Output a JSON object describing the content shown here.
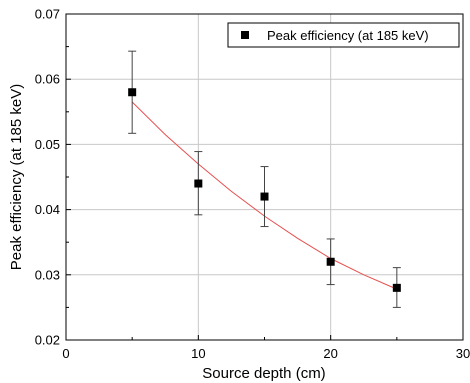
{
  "chart_data": {
    "type": "scatter",
    "xlabel": "Source depth (cm)",
    "ylabel": "Peak efficiency (at 185 keV)",
    "xlim": [
      0,
      30
    ],
    "ylim": [
      0.02,
      0.07
    ],
    "x_ticks": [
      0,
      10,
      20,
      30
    ],
    "y_ticks": [
      0.02,
      0.03,
      0.04,
      0.05,
      0.06,
      0.07
    ],
    "x_tick_labels": [
      "0",
      "10",
      "20",
      "30"
    ],
    "y_tick_labels": [
      "0.02",
      "0.03",
      "0.04",
      "0.05",
      "0.06",
      "0.07"
    ],
    "grid": true,
    "legend_position": "top-right",
    "series": [
      {
        "name": "Peak efficiency (at 185 keV)",
        "marker": "square",
        "color": "#000000",
        "x": [
          5,
          10,
          15,
          20,
          25
        ],
        "y": [
          0.058,
          0.044,
          0.042,
          0.032,
          0.028
        ],
        "y_err_upper": [
          0.0063,
          0.0049,
          0.0046,
          0.0035,
          0.0031
        ],
        "y_err_lower": [
          0.0063,
          0.0048,
          0.0046,
          0.0035,
          0.003
        ]
      }
    ],
    "fit_curve": {
      "color": "#e65050",
      "x": [
        5,
        7.5,
        10,
        12.5,
        15,
        17.5,
        20,
        22.5,
        25
      ],
      "y": [
        0.0565,
        0.0515,
        0.047,
        0.0428,
        0.039,
        0.0356,
        0.0325,
        0.03,
        0.0278
      ]
    }
  }
}
